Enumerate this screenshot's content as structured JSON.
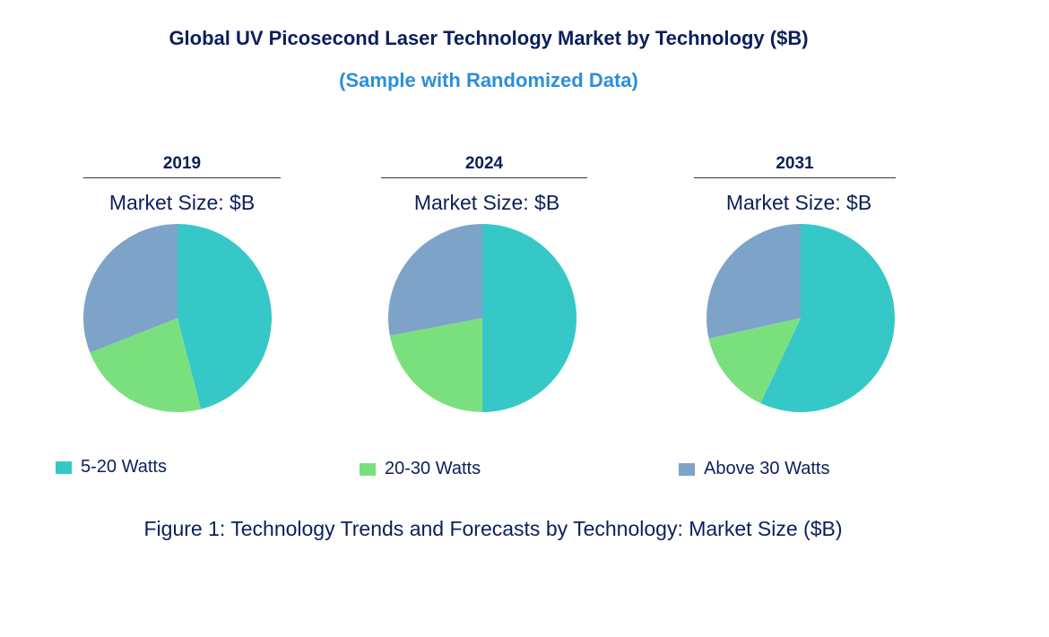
{
  "chart_data": {
    "type": "pie",
    "title": "Global UV Picosecond Laser Technology Market by Technology ($B)",
    "subtitle": "(Sample with Randomized Data)",
    "caption": "Figure 1: Technology Trends and Forecasts by Technology: Market Size ($B)",
    "categories": [
      "5-20 Watts",
      "20-30 Watts",
      "Above 30 Watts"
    ],
    "colors": [
      "#36c8c6",
      "#7ae07e",
      "#7ea3c8"
    ],
    "legend_position": "bottom",
    "pies": [
      {
        "year": "2019",
        "label": "Market Size: $B",
        "values": [
          46,
          23,
          31
        ]
      },
      {
        "year": "2024",
        "label": "Market Size: $B",
        "values": [
          50,
          22,
          28
        ]
      },
      {
        "year": "2031",
        "label": "Market Size: $B",
        "values": [
          57,
          14.5,
          28.5
        ]
      }
    ]
  }
}
